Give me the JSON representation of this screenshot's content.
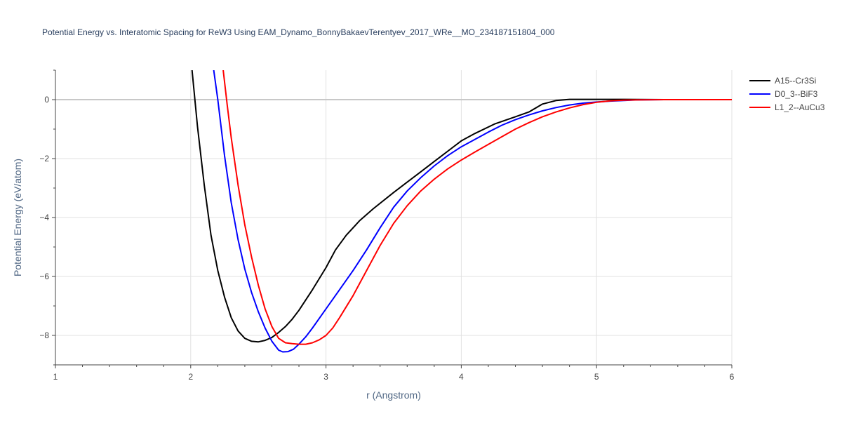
{
  "chart_data": {
    "type": "line",
    "title": "Potential Energy vs. Interatomic Spacing for ReW3 Using EAM_Dynamo_BonnyBakaevTerentyev_2017_WRe__MO_234187151804_000",
    "xlabel": "r (Angstrom)",
    "ylabel": "Potential Energy (eV/atom)",
    "xlim": [
      1,
      6
    ],
    "ylim": [
      -9,
      1
    ],
    "xticks": [
      1,
      2,
      3,
      4,
      5,
      6
    ],
    "yticks": [
      -8,
      -6,
      -4,
      -2,
      0
    ],
    "xtick_labels": [
      "1",
      "2",
      "3",
      "4",
      "5",
      "6"
    ],
    "ytick_labels": [
      "−8",
      "−6",
      "−4",
      "−2",
      "0"
    ],
    "grid": true,
    "legend_position": "top-right",
    "series": [
      {
        "name": "A15--Cr3Si",
        "color": "#000000",
        "x": [
          2.01,
          2.05,
          2.1,
          2.15,
          2.2,
          2.25,
          2.3,
          2.35,
          2.4,
          2.45,
          2.5,
          2.55,
          2.6,
          2.65,
          2.7,
          2.75,
          2.8,
          2.9,
          3.0,
          3.07,
          3.15,
          3.25,
          3.35,
          3.5,
          3.6,
          3.7,
          3.8,
          3.9,
          4.0,
          4.1,
          4.25,
          4.4,
          4.5,
          4.6,
          4.7,
          4.8,
          4.9,
          5.0,
          5.2,
          5.5,
          6.0
        ],
        "y": [
          1.0,
          -0.9,
          -2.9,
          -4.6,
          -5.8,
          -6.7,
          -7.4,
          -7.85,
          -8.1,
          -8.2,
          -8.22,
          -8.17,
          -8.07,
          -7.9,
          -7.7,
          -7.45,
          -7.15,
          -6.45,
          -5.7,
          -5.1,
          -4.6,
          -4.1,
          -3.7,
          -3.15,
          -2.8,
          -2.45,
          -2.1,
          -1.75,
          -1.4,
          -1.15,
          -0.82,
          -0.58,
          -0.42,
          -0.15,
          -0.03,
          0.01,
          0.01,
          0.01,
          0.01,
          0.0,
          0.0
        ]
      },
      {
        "name": "D0_3--BiF3",
        "color": "#0000ff",
        "x": [
          2.17,
          2.2,
          2.25,
          2.3,
          2.35,
          2.4,
          2.45,
          2.5,
          2.55,
          2.6,
          2.65,
          2.68,
          2.72,
          2.76,
          2.8,
          2.85,
          2.9,
          3.0,
          3.1,
          3.2,
          3.3,
          3.4,
          3.5,
          3.6,
          3.7,
          3.8,
          3.9,
          4.0,
          4.1,
          4.2,
          4.3,
          4.4,
          4.5,
          4.6,
          4.7,
          4.8,
          4.9,
          5.0,
          5.1,
          5.2,
          5.3,
          5.5,
          6.0
        ],
        "y": [
          1.0,
          0.0,
          -1.9,
          -3.5,
          -4.75,
          -5.75,
          -6.55,
          -7.2,
          -7.75,
          -8.2,
          -8.5,
          -8.56,
          -8.55,
          -8.47,
          -8.3,
          -8.05,
          -7.75,
          -7.1,
          -6.45,
          -5.8,
          -5.1,
          -4.35,
          -3.65,
          -3.1,
          -2.65,
          -2.25,
          -1.9,
          -1.6,
          -1.35,
          -1.1,
          -0.87,
          -0.68,
          -0.52,
          -0.38,
          -0.27,
          -0.18,
          -0.12,
          -0.08,
          -0.05,
          -0.03,
          -0.01,
          0.0,
          0.0
        ]
      },
      {
        "name": "L1_2--AuCu3",
        "color": "#ff0000",
        "x": [
          2.24,
          2.27,
          2.3,
          2.35,
          2.4,
          2.45,
          2.5,
          2.55,
          2.6,
          2.65,
          2.7,
          2.75,
          2.8,
          2.85,
          2.9,
          2.95,
          3.0,
          3.05,
          3.1,
          3.2,
          3.3,
          3.4,
          3.5,
          3.6,
          3.7,
          3.8,
          3.9,
          4.0,
          4.1,
          4.2,
          4.3,
          4.4,
          4.5,
          4.6,
          4.7,
          4.8,
          4.9,
          5.0,
          5.1,
          5.2,
          5.3,
          5.5,
          6.0
        ],
        "y": [
          1.0,
          -0.2,
          -1.3,
          -2.9,
          -4.25,
          -5.35,
          -6.3,
          -7.1,
          -7.7,
          -8.1,
          -8.25,
          -8.28,
          -8.3,
          -8.3,
          -8.25,
          -8.15,
          -8.0,
          -7.75,
          -7.4,
          -6.65,
          -5.8,
          -4.95,
          -4.2,
          -3.6,
          -3.1,
          -2.7,
          -2.35,
          -2.05,
          -1.78,
          -1.52,
          -1.26,
          -1.0,
          -0.78,
          -0.58,
          -0.42,
          -0.28,
          -0.17,
          -0.09,
          -0.04,
          -0.02,
          -0.01,
          0.0,
          0.0
        ]
      }
    ]
  }
}
